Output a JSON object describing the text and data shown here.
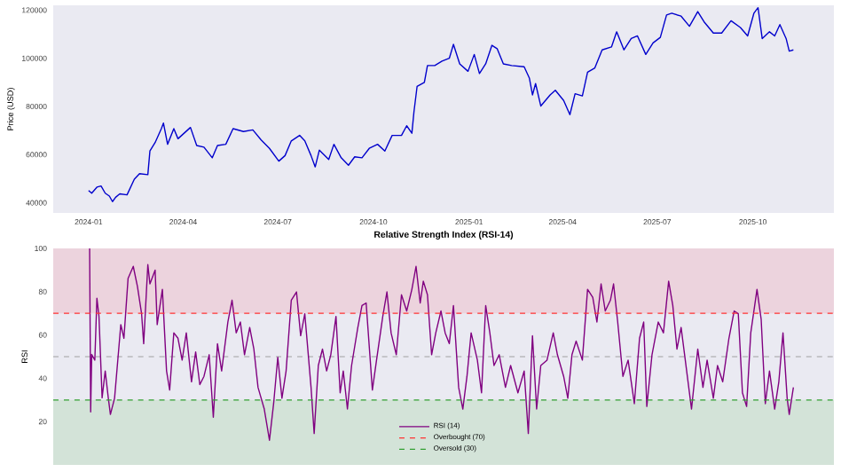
{
  "chart_data": [
    {
      "type": "line",
      "ylabel": "Price (USD)",
      "xlim": [
        "2023-11-28",
        "2025-12-18"
      ],
      "ylim": [
        35800,
        122000
      ],
      "xticks": [
        "2024-01",
        "2024-04",
        "2024-07",
        "2024-10",
        "2025-01",
        "2025-04",
        "2025-07",
        "2025-10"
      ],
      "yticks": [
        40000,
        60000,
        80000,
        100000,
        120000
      ],
      "x": [
        "2024-01-01",
        "2024-01-04",
        "2024-01-09",
        "2024-01-13",
        "2024-01-17",
        "2024-01-21",
        "2024-01-24",
        "2024-01-27",
        "2024-01-31",
        "2024-02-07",
        "2024-02-14",
        "2024-02-19",
        "2024-02-27",
        "2024-02-29",
        "2024-03-05",
        "2024-03-11",
        "2024-03-13",
        "2024-03-17",
        "2024-03-23",
        "2024-03-27",
        "2024-04-08",
        "2024-04-14",
        "2024-04-21",
        "2024-04-29",
        "2024-05-04",
        "2024-05-12",
        "2024-05-19",
        "2024-05-29",
        "2024-06-07",
        "2024-06-15",
        "2024-06-23",
        "2024-07-02",
        "2024-07-08",
        "2024-07-14",
        "2024-07-22",
        "2024-07-27",
        "2024-08-02",
        "2024-08-06",
        "2024-08-10",
        "2024-08-19",
        "2024-08-24",
        "2024-08-31",
        "2024-09-07",
        "2024-09-13",
        "2024-09-20",
        "2024-09-27",
        "2024-10-05",
        "2024-10-12",
        "2024-10-19",
        "2024-10-28",
        "2024-11-02",
        "2024-11-07",
        "2024-11-09",
        "2024-11-12",
        "2024-11-19",
        "2024-11-22",
        "2024-11-29",
        "2024-12-06",
        "2024-12-13",
        "2024-12-17",
        "2024-12-23",
        "2024-12-31",
        "2025-01-06",
        "2025-01-11",
        "2025-01-17",
        "2025-01-23",
        "2025-01-28",
        "2025-02-03",
        "2025-02-11",
        "2025-02-23",
        "2025-02-28",
        "2025-03-03",
        "2025-03-06",
        "2025-03-11",
        "2025-03-20",
        "2025-03-25",
        "2025-04-02",
        "2025-04-08",
        "2025-04-13",
        "2025-04-20",
        "2025-04-25",
        "2025-05-02",
        "2025-05-09",
        "2025-05-18",
        "2025-05-23",
        "2025-05-30",
        "2025-06-06",
        "2025-06-12",
        "2025-06-20",
        "2025-06-27",
        "2025-07-04",
        "2025-07-10",
        "2025-07-15",
        "2025-07-24",
        "2025-08-01",
        "2025-08-09",
        "2025-08-15",
        "2025-08-24",
        "2025-09-01",
        "2025-09-10",
        "2025-09-19",
        "2025-09-26",
        "2025-10-02",
        "2025-10-06",
        "2025-10-10",
        "2025-10-17",
        "2025-10-22",
        "2025-10-27",
        "2025-11-02",
        "2025-11-05",
        "2025-11-09"
      ],
      "series": [
        {
          "color": "#0000cc",
          "values": [
            45100,
            44000,
            46500,
            47000,
            44000,
            42800,
            40500,
            42300,
            43700,
            43300,
            49800,
            52100,
            51700,
            61500,
            65000,
            70800,
            73100,
            64300,
            70800,
            66600,
            71300,
            63800,
            63100,
            58700,
            63800,
            64300,
            70800,
            69600,
            70300,
            66100,
            62600,
            57300,
            59600,
            65700,
            68000,
            65700,
            59600,
            54900,
            61900,
            58000,
            64300,
            58700,
            55600,
            59100,
            58700,
            62600,
            64300,
            61500,
            68000,
            68000,
            72000,
            68900,
            77800,
            88300,
            90000,
            97000,
            97000,
            98800,
            100000,
            105800,
            97700,
            94600,
            101600,
            93700,
            97700,
            105400,
            104000,
            97700,
            97000,
            96500,
            91800,
            84800,
            89500,
            80200,
            84800,
            86700,
            82500,
            76600,
            85300,
            84400,
            94200,
            96000,
            103500,
            104700,
            111000,
            103500,
            108200,
            109300,
            101600,
            106400,
            108700,
            118000,
            118700,
            117500,
            113300,
            119400,
            115200,
            110500,
            110500,
            115600,
            112800,
            109300,
            118700,
            121000,
            108200,
            111000,
            109300,
            114000,
            108200,
            103000,
            103500
          ]
        }
      ]
    },
    {
      "type": "line",
      "title": "Relative Strength Index (RSI-14)",
      "ylabel": "RSI",
      "xlim": [
        "2023-11-28",
        "2025-12-18"
      ],
      "ylim": [
        0,
        100
      ],
      "yticks": [
        20,
        40,
        60,
        80,
        100
      ],
      "tick_labels": "y",
      "legend": "bottom",
      "bands": [
        {
          "axis": "y",
          "from": 70,
          "to": 100,
          "color": "#ecd3dd"
        },
        {
          "axis": "y",
          "from": 0,
          "to": 30,
          "color": "#d3e3d8"
        }
      ],
      "ref_lines": [
        {
          "axis": "y",
          "value": 70,
          "label": "Overbought (70)",
          "color": "#ff3333",
          "line_style": "dashed"
        },
        {
          "axis": "y",
          "value": 50,
          "color": "#a0a0a0",
          "line_style": "dashed"
        },
        {
          "axis": "y",
          "value": 30,
          "label": "Oversold (30)",
          "color": "#33a033",
          "line_style": "dashed"
        }
      ],
      "x": [
        "2024-01-02",
        "2024-01-03",
        "2024-01-04",
        "2024-01-07",
        "2024-01-09",
        "2024-01-11",
        "2024-01-14",
        "2024-01-17",
        "2024-01-20",
        "2024-01-22",
        "2024-01-26",
        "2024-01-30",
        "2024-02-01",
        "2024-02-04",
        "2024-02-08",
        "2024-02-13",
        "2024-02-17",
        "2024-02-21",
        "2024-02-23",
        "2024-02-27",
        "2024-02-29",
        "2024-03-05",
        "2024-03-07",
        "2024-03-12",
        "2024-03-16",
        "2024-03-19",
        "2024-03-23",
        "2024-03-27",
        "2024-03-31",
        "2024-04-04",
        "2024-04-09",
        "2024-04-13",
        "2024-04-17",
        "2024-04-21",
        "2024-04-26",
        "2024-04-30",
        "2024-05-04",
        "2024-05-08",
        "2024-05-14",
        "2024-05-18",
        "2024-05-22",
        "2024-05-26",
        "2024-05-30",
        "2024-06-04",
        "2024-06-08",
        "2024-06-12",
        "2024-06-18",
        "2024-06-23",
        "2024-06-27",
        "2024-07-01",
        "2024-07-05",
        "2024-07-09",
        "2024-07-14",
        "2024-07-19",
        "2024-07-23",
        "2024-07-27",
        "2024-08-02",
        "2024-08-05",
        "2024-08-09",
        "2024-08-13",
        "2024-08-17",
        "2024-08-21",
        "2024-08-26",
        "2024-08-30",
        "2024-09-02",
        "2024-09-06",
        "2024-09-10",
        "2024-09-16",
        "2024-09-20",
        "2024-09-24",
        "2024-09-30",
        "2024-10-04",
        "2024-10-10",
        "2024-10-14",
        "2024-10-18",
        "2024-10-23",
        "2024-10-28",
        "2024-11-02",
        "2024-11-07",
        "2024-11-11",
        "2024-11-15",
        "2024-11-18",
        "2024-11-22",
        "2024-11-26",
        "2024-11-30",
        "2024-12-05",
        "2024-12-09",
        "2024-12-13",
        "2024-12-17",
        "2024-12-22",
        "2024-12-26",
        "2024-12-30",
        "2025-01-03",
        "2025-01-09",
        "2025-01-13",
        "2025-01-17",
        "2025-01-21",
        "2025-01-25",
        "2025-01-30",
        "2025-02-05",
        "2025-02-10",
        "2025-02-17",
        "2025-02-23",
        "2025-02-27",
        "2025-03-03",
        "2025-03-07",
        "2025-03-11",
        "2025-03-17",
        "2025-03-23",
        "2025-03-27",
        "2025-04-02",
        "2025-04-06",
        "2025-04-10",
        "2025-04-14",
        "2025-04-20",
        "2025-04-25",
        "2025-04-30",
        "2025-05-04",
        "2025-05-08",
        "2025-05-12",
        "2025-05-17",
        "2025-05-20",
        "2025-05-24",
        "2025-05-29",
        "2025-06-03",
        "2025-06-09",
        "2025-06-14",
        "2025-06-18",
        "2025-06-21",
        "2025-06-26",
        "2025-07-02",
        "2025-07-07",
        "2025-07-12",
        "2025-07-16",
        "2025-07-20",
        "2025-07-24",
        "2025-07-28",
        "2025-08-03",
        "2025-08-09",
        "2025-08-14",
        "2025-08-18",
        "2025-08-24",
        "2025-08-28",
        "2025-09-02",
        "2025-09-08",
        "2025-09-13",
        "2025-09-17",
        "2025-09-21",
        "2025-09-25",
        "2025-09-29",
        "2025-10-05",
        "2025-10-09",
        "2025-10-13",
        "2025-10-17",
        "2025-10-22",
        "2025-10-26",
        "2025-10-30",
        "2025-11-03",
        "2025-11-05",
        "2025-11-09"
      ],
      "series": [
        {
          "name": "RSI (14)",
          "color": "#800080",
          "values": [
            100,
            24.5,
            51,
            48.4,
            77,
            68.6,
            31,
            43.4,
            30.8,
            23.3,
            30.8,
            53.5,
            64.8,
            58.5,
            86.2,
            91.7,
            82.4,
            69.8,
            56,
            92.5,
            83.6,
            90,
            64.8,
            81.1,
            43.4,
            34.6,
            61,
            58.5,
            48.4,
            61,
            38.4,
            52.2,
            37.1,
            40.9,
            50.9,
            22,
            56,
            43.4,
            66,
            76.1,
            61,
            66,
            50.9,
            63.5,
            53.5,
            35.8,
            25.8,
            11.4,
            28.3,
            49.7,
            30.8,
            43.4,
            76.1,
            79.9,
            59.7,
            69.8,
            35.8,
            14.5,
            45.9,
            53.5,
            43.4,
            50.9,
            68.6,
            33.3,
            43.4,
            25.8,
            45.9,
            63.5,
            73.6,
            74.8,
            34.6,
            48.4,
            68.6,
            79.9,
            61,
            50.9,
            78.6,
            71.1,
            81.1,
            91.7,
            74.8,
            84.9,
            78.6,
            50.9,
            61,
            71.1,
            61,
            56,
            73.6,
            35.8,
            25.8,
            40.9,
            61,
            48.4,
            33.3,
            73.6,
            61,
            45.9,
            50.9,
            35.8,
            45.9,
            33.3,
            43.4,
            14.5,
            59.7,
            25.8,
            45.9,
            48.4,
            61,
            50.9,
            40.9,
            30.8,
            50.9,
            57.2,
            48.4,
            81.1,
            77.4,
            66,
            83.6,
            71.1,
            76.1,
            83.6,
            66,
            40.9,
            48.4,
            28.3,
            58.5,
            66,
            27,
            50.9,
            66,
            61,
            84.9,
            73.6,
            53.5,
            63.5,
            48.4,
            25.8,
            53.5,
            35.8,
            48.4,
            30.8,
            45.9,
            38.4,
            58.5,
            71.1,
            69.8,
            33.3,
            27,
            61,
            81.1,
            67.3,
            28.3,
            43.4,
            25.8,
            38.4,
            61,
            30.8,
            23.3,
            35.8
          ]
        }
      ]
    }
  ]
}
